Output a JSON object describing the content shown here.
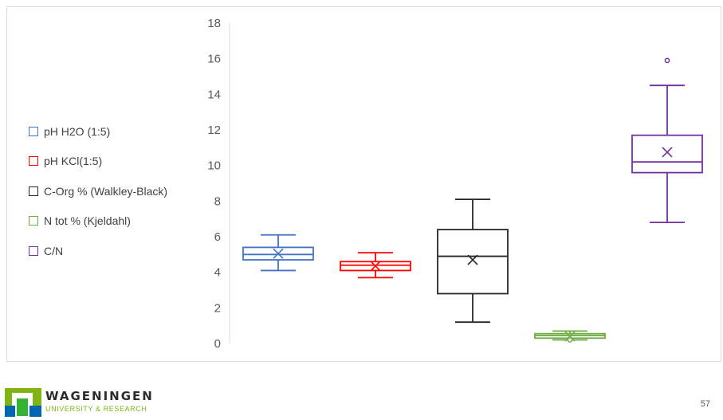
{
  "chart_data": {
    "type": "box",
    "title": "",
    "xlabel": "",
    "ylabel": "",
    "ylim": [
      0,
      18
    ],
    "yticks": [
      "0",
      "2",
      "4",
      "6",
      "8",
      "10",
      "12",
      "14",
      "16",
      "18"
    ],
    "grid": false,
    "legend_position": "left",
    "series": [
      {
        "name": "pH H2O (1:5)",
        "color": "#4472c4",
        "min": 4.1,
        "q1": 4.7,
        "median": 5.0,
        "q3": 5.4,
        "max": 6.1,
        "mean": 5.05,
        "outliers": []
      },
      {
        "name": "pH KCl(1:5)",
        "color": "#ff0000",
        "min": 3.7,
        "q1": 4.1,
        "median": 4.4,
        "q3": 4.6,
        "max": 5.1,
        "mean": 4.35,
        "outliers": []
      },
      {
        "name": "C-Org % (Walkley-Black)",
        "color": "#262626",
        "min": 1.2,
        "q1": 2.8,
        "median": 4.9,
        "q3": 6.4,
        "max": 8.1,
        "mean": 4.7,
        "outliers": []
      },
      {
        "name": "N tot % (Kjeldahl)",
        "color": "#70ad47",
        "min": 0.2,
        "q1": 0.3,
        "median": 0.45,
        "q3": 0.55,
        "max": 0.7,
        "mean": 0.4,
        "outliers": [
          0.2
        ]
      },
      {
        "name": "C/N",
        "color": "#7030a0",
        "min": 6.8,
        "q1": 9.6,
        "median": 10.2,
        "q3": 11.7,
        "max": 14.5,
        "mean": 10.75,
        "outliers": [
          15.9
        ]
      }
    ]
  },
  "footer": {
    "logo_name": "WAGENINGEN",
    "logo_sub": "UNIVERSITY & RESEARCH",
    "page_number": "57",
    "logo_colors": {
      "green": "#7fb414",
      "dark_green": "#34b233",
      "blue": "#0066b3"
    }
  }
}
